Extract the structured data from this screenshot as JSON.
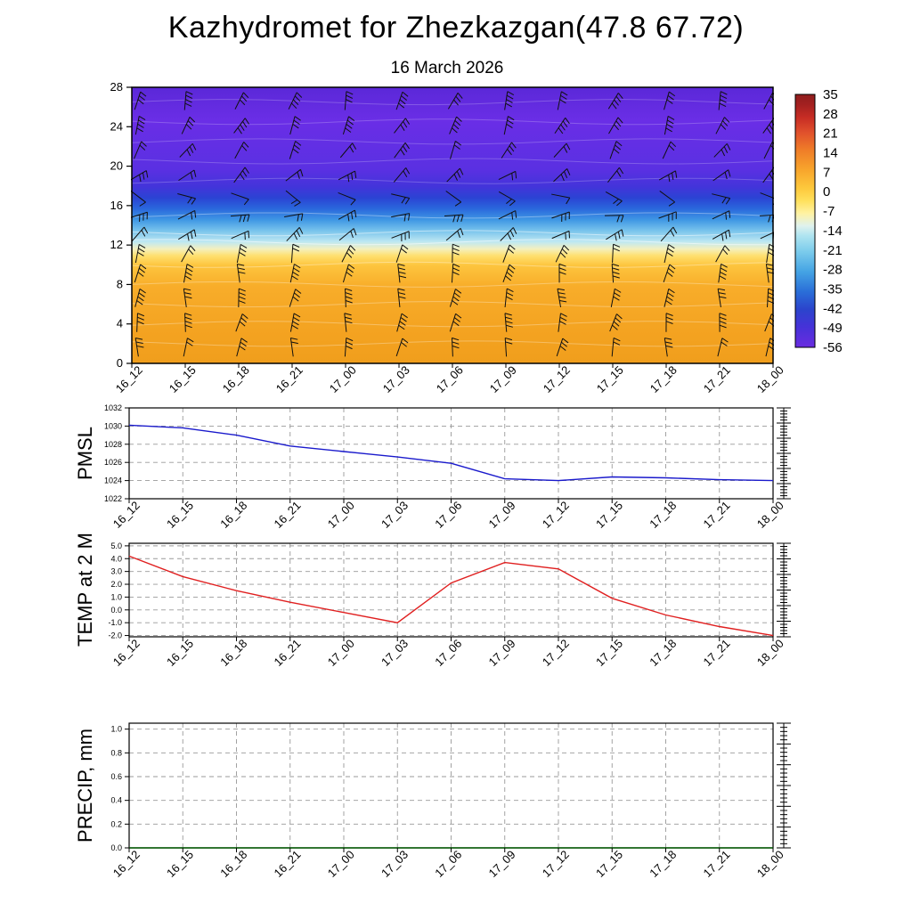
{
  "title": "Kazhydromet for Zhezkazgan(47.8 67.72)",
  "subtitle": "16 March 2026",
  "time_labels": [
    "16_12",
    "16_15",
    "16_18",
    "16_21",
    "17_00",
    "17_03",
    "17_06",
    "17_09",
    "17_12",
    "17_15",
    "17_18",
    "17_21",
    "18_00"
  ],
  "chart_data": [
    {
      "type": "heatmap",
      "name": "upper-air-temperature-cross-section",
      "title": "Vertical temperature cross-section with wind barbs",
      "ylabel": "",
      "ylim": [
        0,
        28
      ],
      "y_ticks": [
        0,
        4,
        8,
        12,
        16,
        20,
        24,
        28
      ],
      "y_tick_labels": [
        "0",
        "4",
        "8",
        "12",
        "16",
        "20",
        "24",
        "28"
      ],
      "gradient_stops": [
        {
          "frac": 0.0,
          "color": "#5b28d8"
        },
        {
          "frac": 0.12,
          "color": "#6a2ee6"
        },
        {
          "frac": 0.3,
          "color": "#5a30e2"
        },
        {
          "frac": 0.36,
          "color": "#4334da"
        },
        {
          "frac": 0.4,
          "color": "#2b43d4"
        },
        {
          "frac": 0.44,
          "color": "#2a68dc"
        },
        {
          "frac": 0.48,
          "color": "#3f97e4"
        },
        {
          "frac": 0.52,
          "color": "#79c4ec"
        },
        {
          "frac": 0.56,
          "color": "#bfe8f2"
        },
        {
          "frac": 0.585,
          "color": "#f3f0c0"
        },
        {
          "frac": 0.61,
          "color": "#ffe070"
        },
        {
          "frac": 0.645,
          "color": "#fdc53e"
        },
        {
          "frac": 0.72,
          "color": "#f8ad2a"
        },
        {
          "frac": 0.88,
          "color": "#f4a321"
        },
        {
          "frac": 1.0,
          "color": "#f09e1c"
        }
      ],
      "contours": [
        {
          "height": 2,
          "opacity": 0.3
        },
        {
          "height": 4,
          "opacity": 0.3
        },
        {
          "height": 6,
          "opacity": 0.3
        },
        {
          "height": 8,
          "opacity": 0.3
        },
        {
          "height": 10,
          "opacity": 0.35
        },
        {
          "height": 12.3,
          "opacity": 0.55
        },
        {
          "height": 13.2,
          "opacity": 0.5
        },
        {
          "height": 15,
          "opacity": 0.35
        },
        {
          "height": 18.5,
          "opacity": 0.22
        },
        {
          "height": 20.5,
          "opacity": 0.22
        },
        {
          "height": 22.5,
          "opacity": 0.22
        },
        {
          "height": 24.5,
          "opacity": 0.22
        },
        {
          "height": 26.5,
          "opacity": 0.22
        }
      ],
      "barb_rows": [
        {
          "height": 26.5,
          "angle": 72,
          "ticks": 3
        },
        {
          "height": 24,
          "angle": 66,
          "ticks": 3
        },
        {
          "height": 21.5,
          "angle": 60,
          "ticks": 2
        },
        {
          "height": 19,
          "angle": 40,
          "ticks": 2
        },
        {
          "height": 17,
          "angle": -25,
          "ticks": 1
        },
        {
          "height": 15,
          "angle": 15,
          "ticks": 2
        },
        {
          "height": 13,
          "angle": 35,
          "ticks": 2
        },
        {
          "height": 11,
          "angle": 75,
          "ticks": 2
        },
        {
          "height": 9,
          "angle": 84,
          "ticks": 3
        },
        {
          "height": 6.5,
          "angle": 86,
          "ticks": 3
        },
        {
          "height": 4,
          "angle": 82,
          "ticks": 3
        },
        {
          "height": 1.5,
          "angle": 85,
          "ticks": 2
        }
      ],
      "colorbar": {
        "labels": [
          "35",
          "28",
          "21",
          "14",
          "7",
          "0",
          "-7",
          "-14",
          "-21",
          "-28",
          "-35",
          "-42",
          "-49",
          "-56"
        ],
        "stops": [
          {
            "frac": 0.0,
            "color": "#8f1d1d"
          },
          {
            "frac": 0.04,
            "color": "#a32020"
          },
          {
            "frac": 0.09,
            "color": "#c62c24"
          },
          {
            "frac": 0.15,
            "color": "#e0502c"
          },
          {
            "frac": 0.22,
            "color": "#ef7d28"
          },
          {
            "frac": 0.3,
            "color": "#f8a62c"
          },
          {
            "frac": 0.37,
            "color": "#fdc83c"
          },
          {
            "frac": 0.42,
            "color": "#ffe05c"
          },
          {
            "frac": 0.47,
            "color": "#fff2a2"
          },
          {
            "frac": 0.52,
            "color": "#dff2ee"
          },
          {
            "frac": 0.56,
            "color": "#aee4f0"
          },
          {
            "frac": 0.62,
            "color": "#7cccec"
          },
          {
            "frac": 0.7,
            "color": "#45a4e4"
          },
          {
            "frac": 0.78,
            "color": "#2a6ed8"
          },
          {
            "frac": 0.85,
            "color": "#2b44cc"
          },
          {
            "frac": 0.92,
            "color": "#4632d8"
          },
          {
            "frac": 1.0,
            "color": "#6a2ce0"
          }
        ]
      }
    },
    {
      "type": "line",
      "name": "pmsl",
      "title": "Mean sea level pressure",
      "ylabel": "PMSL",
      "ylim": [
        1022,
        1032
      ],
      "y_ticks": [
        1022,
        1024,
        1026,
        1028,
        1030,
        1032
      ],
      "y_tick_labels": [
        "1022",
        "1024",
        "1026",
        "1028",
        "1030",
        "1032"
      ],
      "series": [
        {
          "name": "PMSL",
          "color": "#1a1acc",
          "values": [
            1030.1,
            1029.8,
            1029.0,
            1027.8,
            1027.2,
            1026.6,
            1025.9,
            1024.2,
            1024.0,
            1024.4,
            1024.3,
            1024.1,
            1024.0
          ]
        }
      ]
    },
    {
      "type": "line",
      "name": "temp-2m",
      "title": "Temperature at 2 m",
      "ylabel": "TEMP at 2 M",
      "ylim": [
        -2.1,
        5.2
      ],
      "y_ticks": [
        -2,
        -1,
        0,
        1,
        2,
        3,
        4,
        5
      ],
      "y_tick_labels": [
        "-2.0",
        "-1.0",
        "0.0",
        "1.0",
        "2.0",
        "3.0",
        "4.0",
        "5.0"
      ],
      "series": [
        {
          "name": "TEMP at 2 M",
          "color": "#e02020",
          "values": [
            4.2,
            2.6,
            1.5,
            0.6,
            -0.2,
            -1.0,
            2.1,
            3.7,
            3.2,
            0.9,
            -0.4,
            -1.3,
            -2.0
          ]
        }
      ]
    },
    {
      "type": "line",
      "name": "precip",
      "title": "Precipitation",
      "ylabel": "PRECIP, mm",
      "ylim": [
        0,
        1.05
      ],
      "y_ticks": [
        0,
        0.2,
        0.4,
        0.6,
        0.8,
        1.0
      ],
      "y_tick_labels": [
        "0.0",
        "0.2",
        "0.4",
        "0.6",
        "0.8",
        "1.0"
      ],
      "series": [
        {
          "name": "PRECIP",
          "color": "#005a00",
          "values": [
            0,
            0,
            0,
            0,
            0,
            0,
            0,
            0,
            0,
            0,
            0,
            0,
            0
          ]
        }
      ]
    }
  ]
}
